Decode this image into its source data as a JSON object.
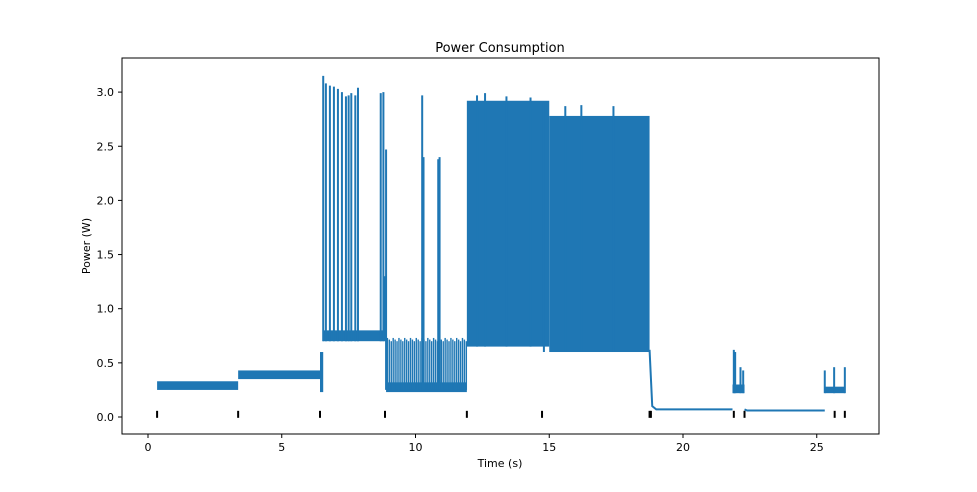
{
  "chart_data": {
    "type": "line",
    "title": "Power Consumption",
    "xlabel": "Time (s)",
    "ylabel": "Power (W)",
    "xlim": [
      -1.0,
      27.3
    ],
    "ylim": [
      -0.15,
      3.3
    ],
    "xticks": [
      0,
      5,
      10,
      15,
      20,
      25
    ],
    "xtick_labels": [
      "0",
      "5",
      "10",
      "15",
      "20",
      "25"
    ],
    "yticks": [
      0.0,
      0.5,
      1.0,
      1.5,
      2.0,
      2.5,
      3.0
    ],
    "ytick_labels": [
      "0.0",
      "0.5",
      "1.0",
      "1.5",
      "2.0",
      "2.5",
      "3.0"
    ],
    "grid": false,
    "series_color": "#1f77b4",
    "bands": [
      {
        "t0": 0.34,
        "t1": 3.37,
        "low": 0.25,
        "high": 0.33
      },
      {
        "t0": 3.37,
        "t1": 6.43,
        "low": 0.35,
        "high": 0.43
      },
      {
        "t0": 6.43,
        "t1": 6.55,
        "low": 0.23,
        "high": 0.6
      },
      {
        "t0": 6.55,
        "t1": 8.8,
        "low": 0.7,
        "high": 0.8
      },
      {
        "t0": 8.8,
        "t1": 8.9,
        "low": 0.7,
        "high": 1.3
      },
      {
        "t0": 8.9,
        "t1": 11.92,
        "low": 0.23,
        "high": 0.32
      },
      {
        "t0": 11.92,
        "t1": 15.0,
        "low": 0.65,
        "high": 2.92
      },
      {
        "t0": 15.0,
        "t1": 18.75,
        "low": 0.6,
        "high": 2.78
      },
      {
        "t0": 21.85,
        "t1": 22.3,
        "low": 0.22,
        "high": 0.3
      },
      {
        "t0": 25.3,
        "t1": 26.05,
        "low": 0.22,
        "high": 0.28
      }
    ],
    "lines": [
      {
        "points": [
          [
            18.75,
            0.62
          ],
          [
            18.85,
            0.1
          ],
          [
            19.0,
            0.07
          ],
          [
            21.85,
            0.07
          ]
        ]
      },
      {
        "points": [
          [
            22.3,
            0.07
          ],
          [
            22.4,
            0.06
          ],
          [
            25.3,
            0.06
          ]
        ]
      }
    ],
    "spikes": [
      {
        "t": 6.55,
        "base": 0.7,
        "peak": 3.15
      },
      {
        "t": 6.65,
        "base": 0.7,
        "peak": 3.08
      },
      {
        "t": 6.8,
        "base": 0.7,
        "peak": 3.06
      },
      {
        "t": 6.95,
        "base": 0.7,
        "peak": 3.05
      },
      {
        "t": 7.1,
        "base": 0.7,
        "peak": 3.03
      },
      {
        "t": 7.25,
        "base": 0.7,
        "peak": 3.0
      },
      {
        "t": 7.4,
        "base": 0.7,
        "peak": 2.96
      },
      {
        "t": 7.5,
        "base": 0.7,
        "peak": 2.97
      },
      {
        "t": 7.6,
        "base": 0.7,
        "peak": 2.99
      },
      {
        "t": 7.75,
        "base": 0.7,
        "peak": 2.97
      },
      {
        "t": 7.85,
        "base": 0.7,
        "peak": 3.04
      },
      {
        "t": 8.7,
        "base": 0.7,
        "peak": 2.99
      },
      {
        "t": 8.8,
        "base": 0.7,
        "peak": 3.0
      },
      {
        "t": 8.9,
        "base": 0.25,
        "peak": 2.47
      },
      {
        "t": 10.25,
        "base": 0.25,
        "peak": 2.97
      },
      {
        "t": 10.3,
        "base": 0.25,
        "peak": 2.4
      },
      {
        "t": 10.85,
        "base": 0.25,
        "peak": 2.38
      },
      {
        "t": 10.9,
        "base": 0.25,
        "peak": 2.4
      },
      {
        "t": 12.3,
        "base": 0.65,
        "peak": 2.97
      },
      {
        "t": 12.6,
        "base": 0.65,
        "peak": 2.99
      },
      {
        "t": 13.4,
        "base": 0.65,
        "peak": 2.96
      },
      {
        "t": 14.3,
        "base": 0.65,
        "peak": 2.95
      },
      {
        "t": 14.8,
        "base": 0.6,
        "peak": 2.9
      },
      {
        "t": 15.6,
        "base": 0.6,
        "peak": 2.87
      },
      {
        "t": 16.2,
        "base": 0.6,
        "peak": 2.88
      },
      {
        "t": 17.4,
        "base": 0.6,
        "peak": 2.87
      },
      {
        "t": 18.6,
        "base": 0.6,
        "peak": 2.75
      },
      {
        "t": 18.7,
        "base": 0.6,
        "peak": 2.42
      },
      {
        "t": 21.9,
        "base": 0.22,
        "peak": 0.62
      },
      {
        "t": 21.95,
        "base": 0.22,
        "peak": 0.6
      },
      {
        "t": 22.15,
        "base": 0.22,
        "peak": 0.46
      },
      {
        "t": 22.25,
        "base": 0.22,
        "peak": 0.43
      },
      {
        "t": 25.3,
        "base": 0.22,
        "peak": 0.43
      },
      {
        "t": 25.65,
        "base": 0.22,
        "peak": 0.46
      },
      {
        "t": 26.05,
        "base": 0.22,
        "peak": 0.46
      }
    ],
    "periodic_spikes": [
      {
        "t0": 8.95,
        "t1": 11.9,
        "count": 42,
        "base": 0.25,
        "peak": 0.73
      }
    ],
    "event_markers": [
      0.34,
      3.37,
      6.43,
      8.86,
      11.92,
      14.73,
      18.75,
      18.8,
      21.9,
      22.3,
      25.67,
      26.05
    ],
    "event_marker_level": 0.02
  }
}
